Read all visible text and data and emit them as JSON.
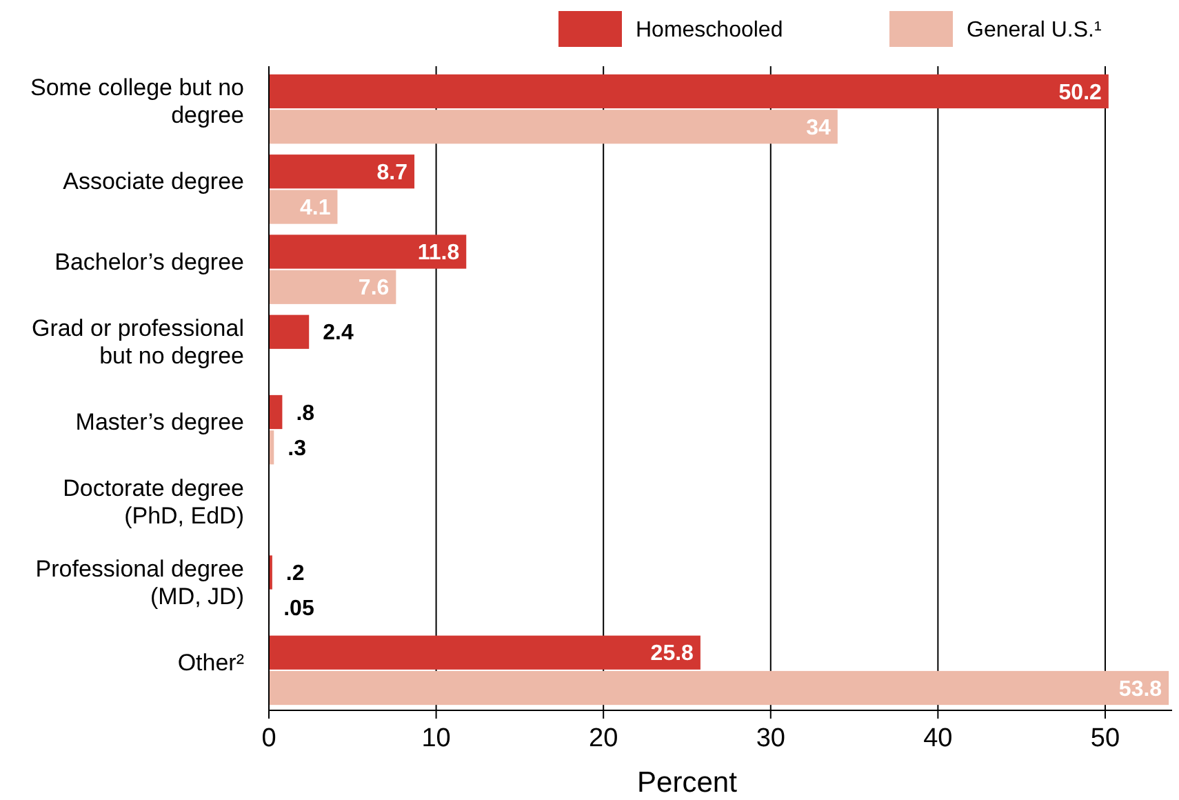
{
  "chart_data": {
    "type": "bar",
    "orientation": "horizontal",
    "xlabel": "Percent",
    "categories": [
      "Some college but no degree",
      "Associate degree",
      "Bachelor’s degree",
      "Grad or professional but no degree",
      "Master’s degree",
      "Doctorate degree (PhD, EdD)",
      "Professional degree (MD, JD)",
      "Other²"
    ],
    "series": [
      {
        "name": "Homeschooled",
        "color": "#d23731",
        "values": [
          50.2,
          8.7,
          11.8,
          2.4,
          0.8,
          null,
          0.2,
          25.8
        ],
        "value_labels": [
          "50.2",
          "8.7",
          "11.8",
          "2.4",
          ".8",
          null,
          ".2",
          "25.8"
        ]
      },
      {
        "name": "General U.S.¹",
        "color": "#edb9a8",
        "values": [
          34,
          4.1,
          7.6,
          null,
          0.3,
          null,
          0.05,
          53.8
        ],
        "value_labels": [
          "34",
          "4.1",
          "7.6",
          null,
          ".3",
          null,
          ".05",
          "53.8"
        ]
      }
    ],
    "xlim": [
      0,
      54
    ],
    "xticks": [
      0,
      10,
      20,
      30,
      40,
      50
    ],
    "grid": "x",
    "legend": "top right"
  }
}
